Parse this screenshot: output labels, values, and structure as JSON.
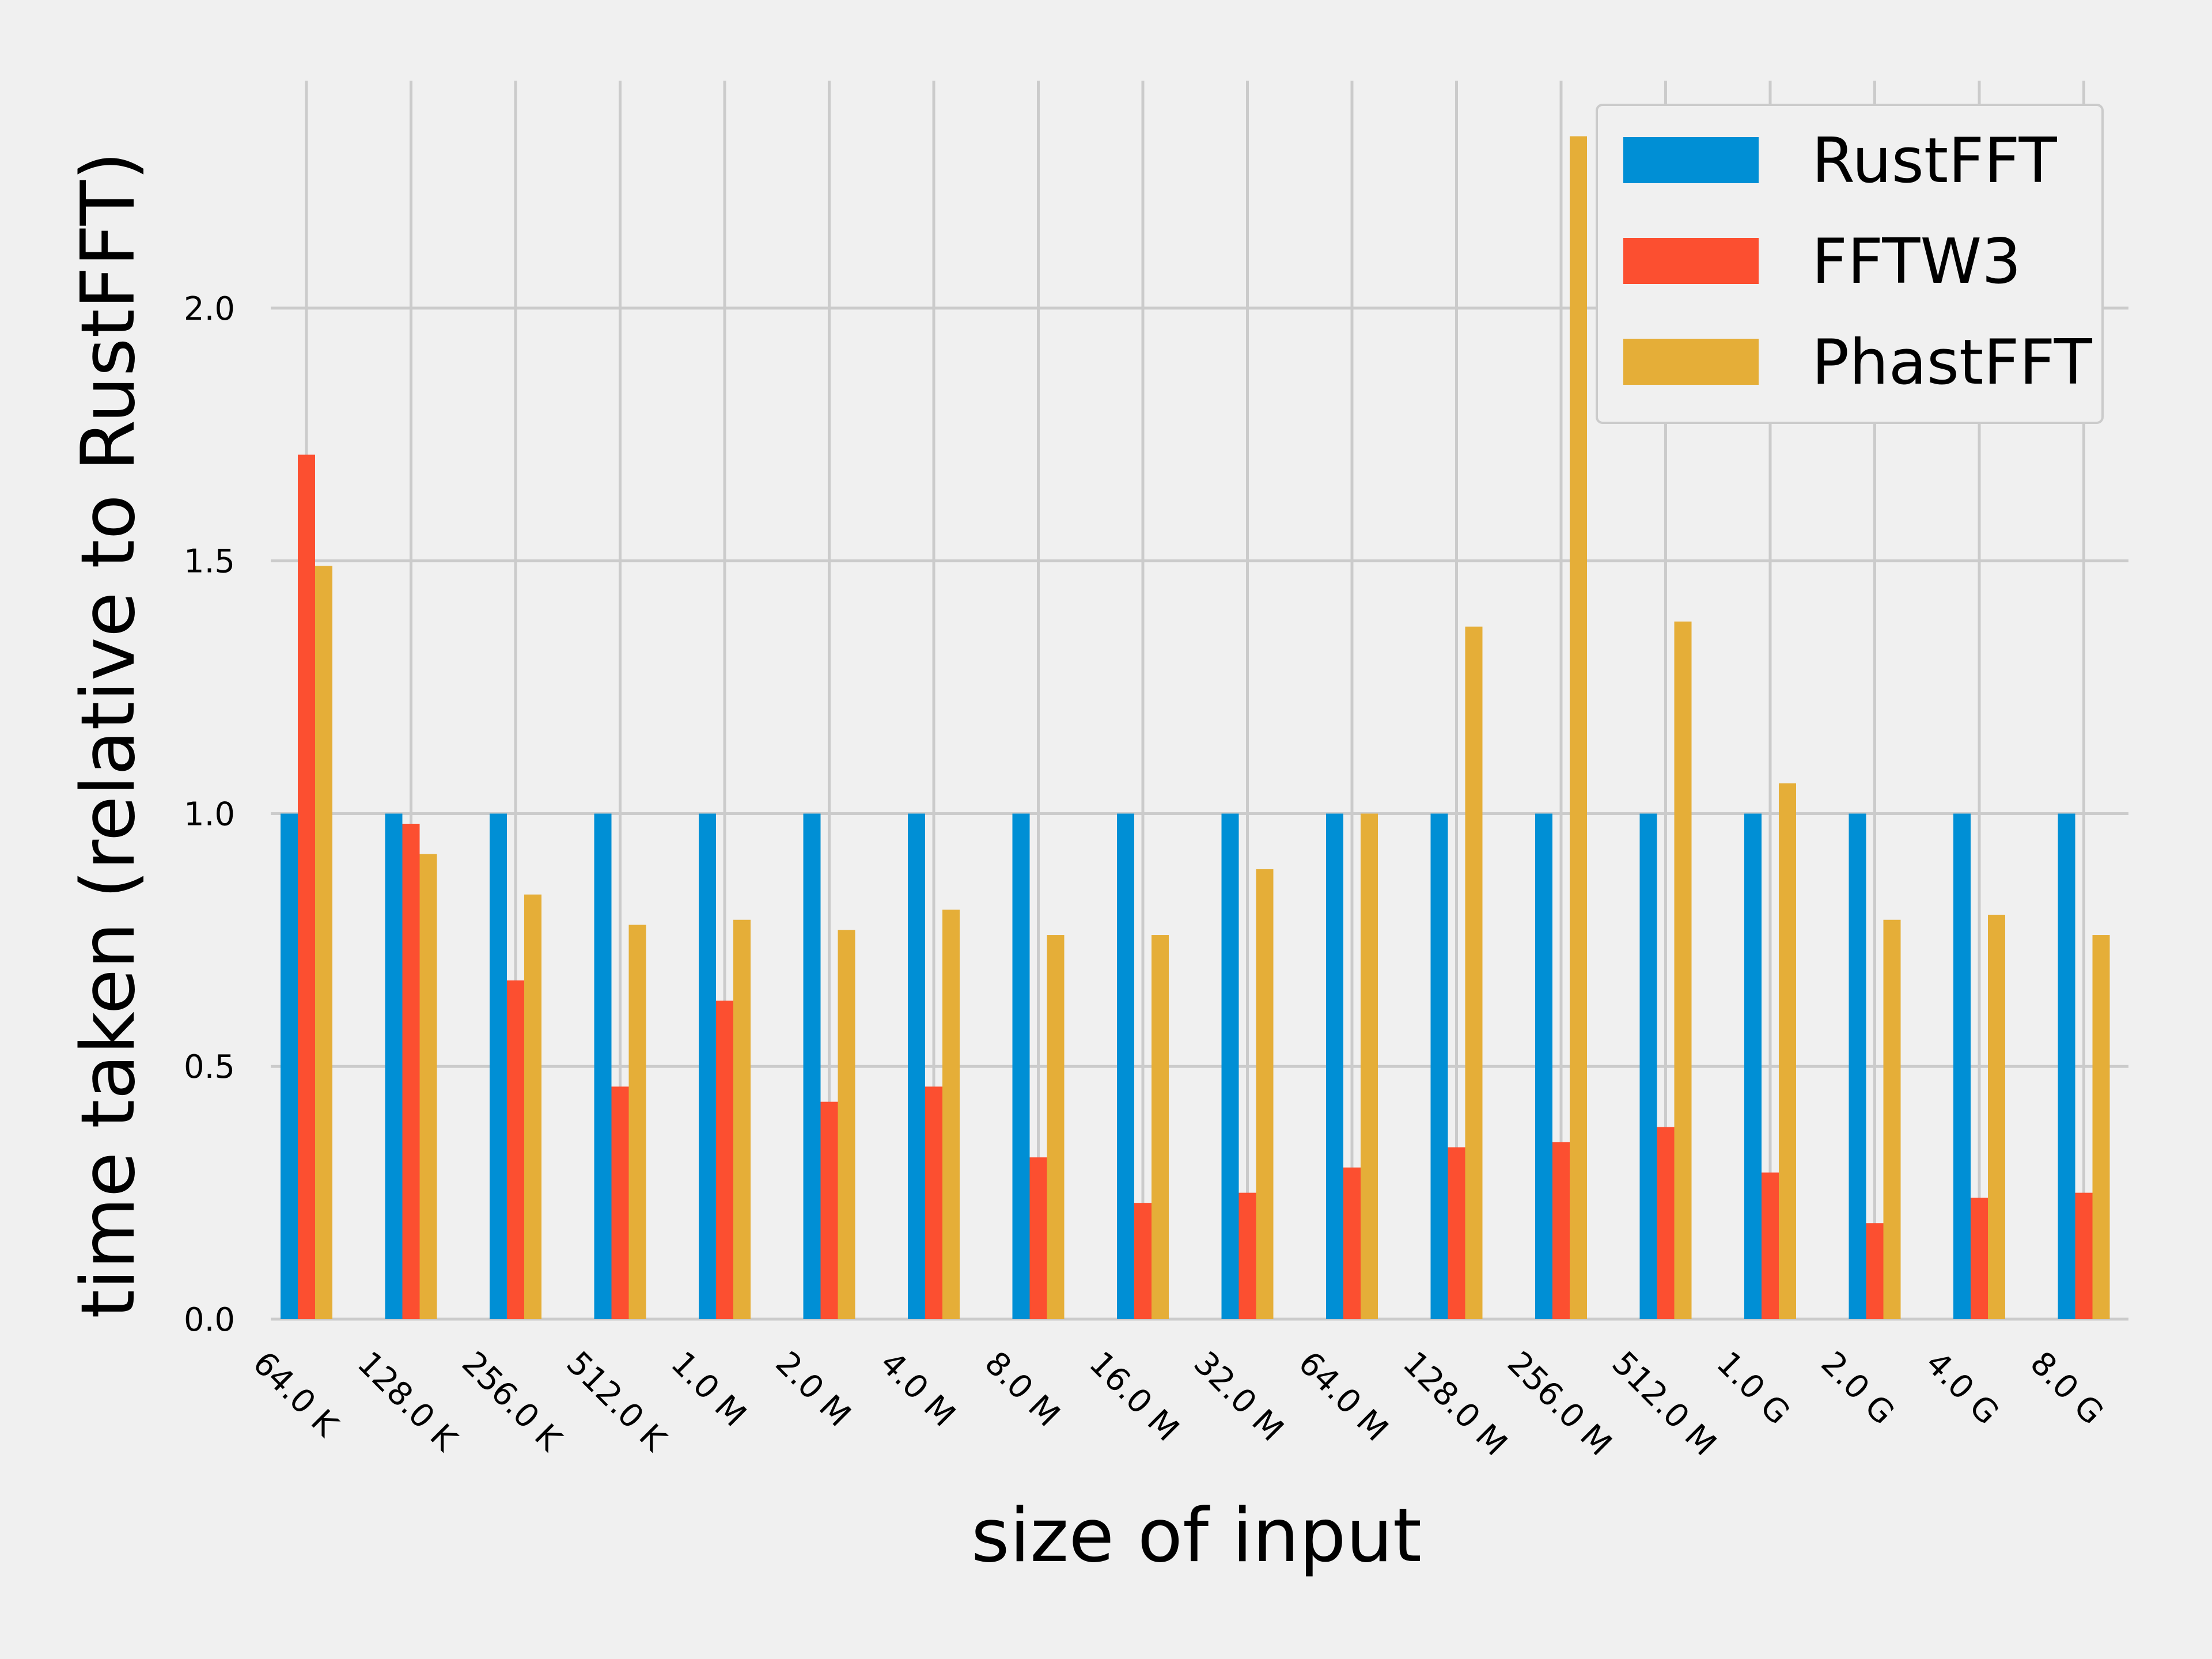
{
  "chart_data": {
    "type": "bar",
    "xlabel": "size of input",
    "ylabel": "time taken (relative to RustFFT)",
    "ylim": [
      0,
      2.45
    ],
    "yticks": [
      0.0,
      0.5,
      1.0,
      1.5,
      2.0
    ],
    "ytick_labels": [
      "0.0",
      "0.5",
      "1.0",
      "1.5",
      "2.0"
    ],
    "grid": true,
    "legend_position": "top-right",
    "categories": [
      "64.0 K",
      "128.0 K",
      "256.0 K",
      "512.0 K",
      "1.0 M",
      "2.0 M",
      "4.0 M",
      "8.0 M",
      "16.0 M",
      "32.0 M",
      "64.0 M",
      "128.0 M",
      "256.0 M",
      "512.0 M",
      "1.0 G",
      "2.0 G",
      "4.0 G",
      "8.0 G"
    ],
    "series": [
      {
        "name": "RustFFT",
        "color": "#008fd5",
        "values": [
          1,
          1,
          1,
          1,
          1,
          1,
          1,
          1,
          1,
          1,
          1,
          1,
          1,
          1,
          1,
          1,
          1,
          1
        ]
      },
      {
        "name": "FFTW3",
        "color": "#fc4f30",
        "values": [
          1.71,
          0.98,
          0.67,
          0.46,
          0.63,
          0.43,
          0.46,
          0.32,
          0.23,
          0.25,
          0.3,
          0.34,
          0.35,
          0.38,
          0.29,
          0.19,
          0.24,
          0.25
        ]
      },
      {
        "name": "PhastFFT",
        "color": "#e5ae38",
        "values": [
          1.49,
          0.92,
          0.84,
          0.78,
          0.79,
          0.77,
          0.81,
          0.76,
          0.76,
          0.89,
          1.0,
          1.37,
          2.34,
          1.38,
          1.06,
          0.79,
          0.8,
          0.76
        ]
      }
    ]
  }
}
